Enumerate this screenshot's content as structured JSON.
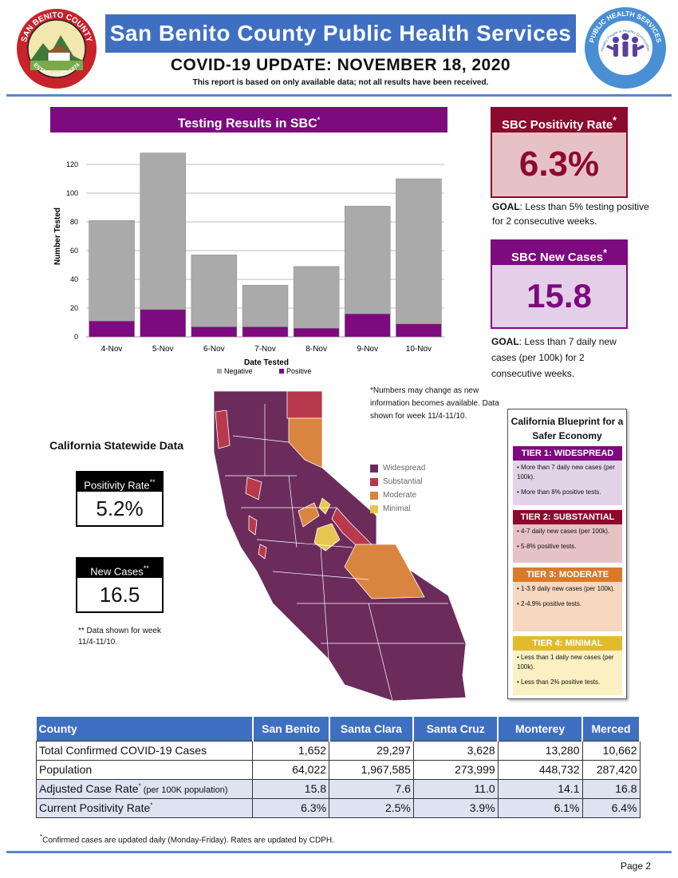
{
  "header": {
    "title": "San Benito County Public Health Services",
    "update_title": "COVID-19 UPDATE: NOVEMBER 18, 2020",
    "subline": "This report is based on only available data; not all results have been received.",
    "county_logo_top_text": "SAN BENITO COUNTY",
    "county_logo_bottom_text": "ESTABLISHED 1874",
    "phs_logo_text": "PUBLIC HEALTH SERVICES",
    "phs_logo_inner_text": "Healthy People in Healthy Communities"
  },
  "testing": {
    "title": "Testing Results in SBC",
    "title_mark": "*"
  },
  "chart_data": {
    "type": "bar",
    "stacked": true,
    "title": "Testing Results in SBC",
    "xlabel": "Date Tested",
    "ylabel": "Number Tested",
    "categories": [
      "4-Nov",
      "5-Nov",
      "6-Nov",
      "7-Nov",
      "8-Nov",
      "9-Nov",
      "10-Nov"
    ],
    "series": [
      {
        "name": "Positive",
        "color": "#7d0a7e",
        "values": [
          11,
          19,
          7,
          7,
          6,
          16,
          9
        ]
      },
      {
        "name": "Negative",
        "color": "#aaaaaa",
        "values": [
          70,
          109,
          50,
          29,
          43,
          75,
          101
        ]
      }
    ],
    "totals": [
      81,
      128,
      57,
      36,
      49,
      91,
      110
    ],
    "ylim": [
      0,
      130
    ],
    "yticks": [
      0,
      20,
      40,
      60,
      80,
      100,
      120
    ],
    "grid": true,
    "legend": "bottom",
    "legend_labels": [
      "Negative",
      "Positive"
    ]
  },
  "sbc": {
    "positivity_title": "SBC Positivity Rate",
    "positivity_value": "6.3%",
    "positivity_goal_label": "GOAL",
    "positivity_goal_text": ": Less than 5% testing positive for 2 consecutive weeks.",
    "cases_title": "SBC New Cases",
    "cases_value": "15.8",
    "cases_goal_label": "GOAL",
    "cases_goal_text": ": Less than 7 daily new cases (per 100k) for 2 consecutive weeks.",
    "mark": "*"
  },
  "statewide": {
    "title": "California Statewide Data",
    "positivity_title": "Positivity Rate",
    "positivity_value": "5.2%",
    "cases_title": "New Cases",
    "cases_value": "16.5",
    "mark": "**",
    "note": "** Data shown for week 11/4-11/10."
  },
  "map": {
    "note": "*Numbers may change as new information becomes available. Data shown for week 11/4-11/10.",
    "legend": [
      {
        "label": "Widespread",
        "color": "#6b2c5c"
      },
      {
        "label": "Substantial",
        "color": "#b8394b"
      },
      {
        "label": "Moderate",
        "color": "#d9843f"
      },
      {
        "label": "Minimal",
        "color": "#e8c550"
      }
    ]
  },
  "tiers": {
    "title": "California Blueprint for a Safer Economy",
    "items": [
      {
        "title": "TIER 1: WIDESPREAD",
        "header_color": "#7d0a7e",
        "bg": "#e3d3e8",
        "lines": [
          "• More than 7 daily new cases (per 100k).",
          "• More than 8% positive tests."
        ]
      },
      {
        "title": "TIER 2: SUBSTANTIAL",
        "header_color": "#8c0a2c",
        "bg": "#e7c2c4",
        "lines": [
          "• 4-7 daily new cases (per 100k).",
          "• 5-8% positive tests."
        ]
      },
      {
        "title": "TIER 3: MODERATE",
        "header_color": "#d97a2a",
        "bg": "#f6d7bf",
        "lines": [
          "• 1-3.9 daily new cases (per 100k).",
          "• 2-4.9% positive tests."
        ]
      },
      {
        "title": "TIER 4: MINIMAL",
        "header_color": "#e1bb2c",
        "bg": "#faf0c1",
        "lines": [
          "• Less than 1 daily new cases (per 100k).",
          "• Less than 2% positive tests."
        ]
      }
    ]
  },
  "table": {
    "headers": [
      "County",
      "San Benito",
      "Santa Clara",
      "Santa Cruz",
      "Monterey",
      "Merced"
    ],
    "rows": [
      {
        "label": "Total Confirmed COVID-19 Cases",
        "values": [
          "1,652",
          "29,297",
          "3,628",
          "13,280",
          "10,662"
        ]
      },
      {
        "label": "Population",
        "values": [
          "64,022",
          "1,967,585",
          "273,999",
          "448,732",
          "287,420"
        ]
      },
      {
        "label": "Adjusted Case Rate",
        "label_note": " (per 100K population)",
        "values": [
          "15.8",
          "7.6",
          "11.0",
          "14.1",
          "16.8"
        ]
      },
      {
        "label": "Current Positivity Rate",
        "values": [
          "6.3%",
          "2.5%",
          "3.9%",
          "6.1%",
          "6.4%"
        ]
      }
    ],
    "mark": "*"
  },
  "footnote": {
    "mark": "*",
    "text": "Confirmed cases are updated daily (Monday-Friday). Rates are updated by CDPH."
  },
  "page": "Page 2"
}
